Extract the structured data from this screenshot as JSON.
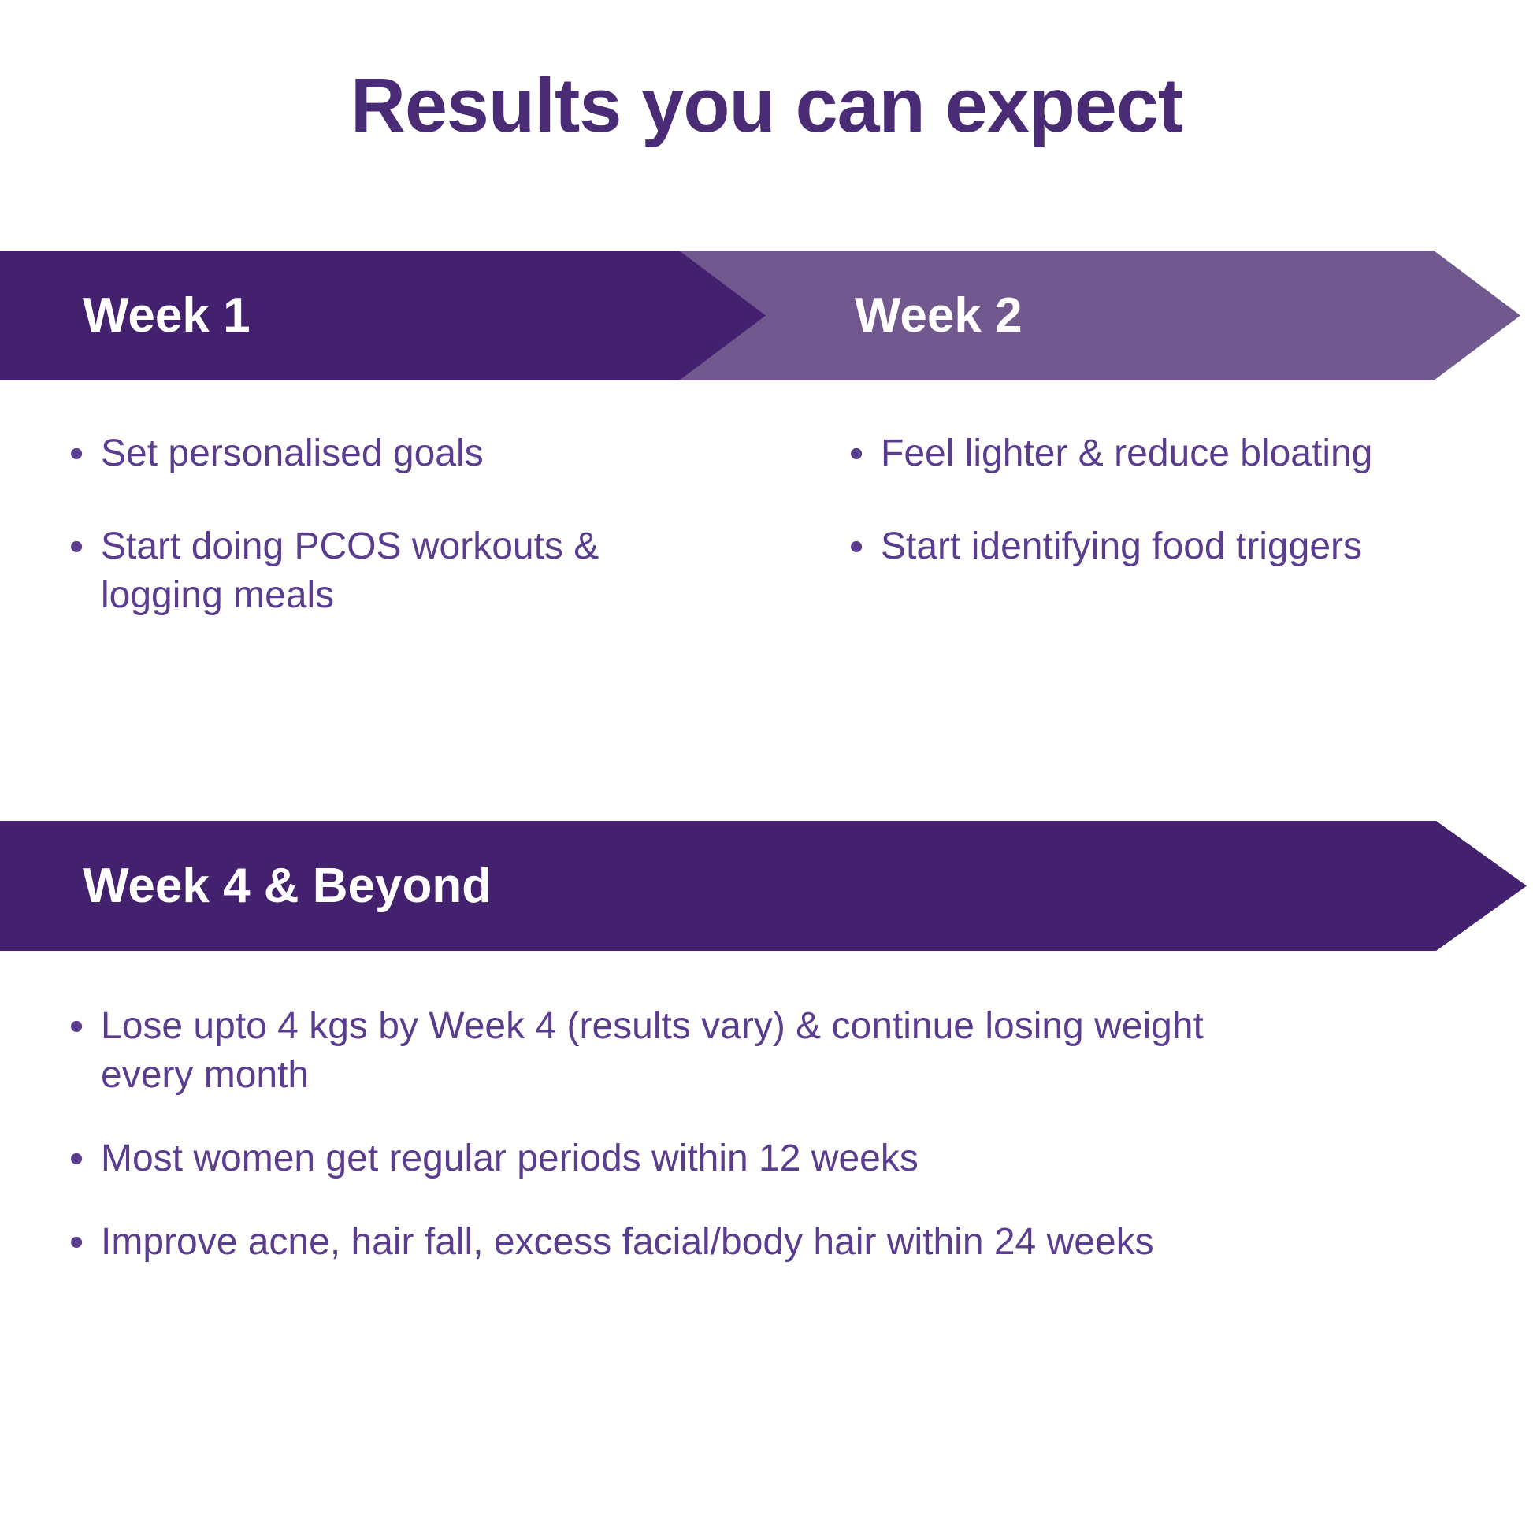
{
  "page": {
    "title": "Results you can expect",
    "background": "#ffffff"
  },
  "colors": {
    "title_text": "#4A2B75",
    "dark_banner": "#43216E",
    "light_banner": "#71588F",
    "banner_label_text": "#FFFFFF",
    "bullet_text": "#5B3D8F"
  },
  "bullet_glyph": "•",
  "sections": [
    {
      "id": "week-1",
      "label": "Week 1",
      "banner_style": "dark",
      "bullets": [
        {
          "lines": [
            "Set personalised goals"
          ]
        },
        {
          "lines": [
            "Start doing PCOS workouts &",
            "logging meals"
          ]
        }
      ]
    },
    {
      "id": "week-2",
      "label": "Week 2",
      "banner_style": "light",
      "bullets": [
        {
          "lines": [
            "Feel lighter & reduce bloating"
          ]
        },
        {
          "lines": [
            "Start identifying food triggers"
          ]
        }
      ]
    },
    {
      "id": "week-4-and-beyond",
      "label": "Week 4 & Beyond",
      "banner_style": "dark",
      "bullets": [
        {
          "lines": [
            "Lose upto 4 kgs by Week 4 (results vary) & continue losing weight",
            "every month"
          ]
        },
        {
          "lines": [
            "Most women get regular periods within 12 weeks"
          ]
        },
        {
          "lines": [
            "Improve acne, hair fall, excess facial/body hair within 24 weeks"
          ]
        }
      ]
    }
  ]
}
